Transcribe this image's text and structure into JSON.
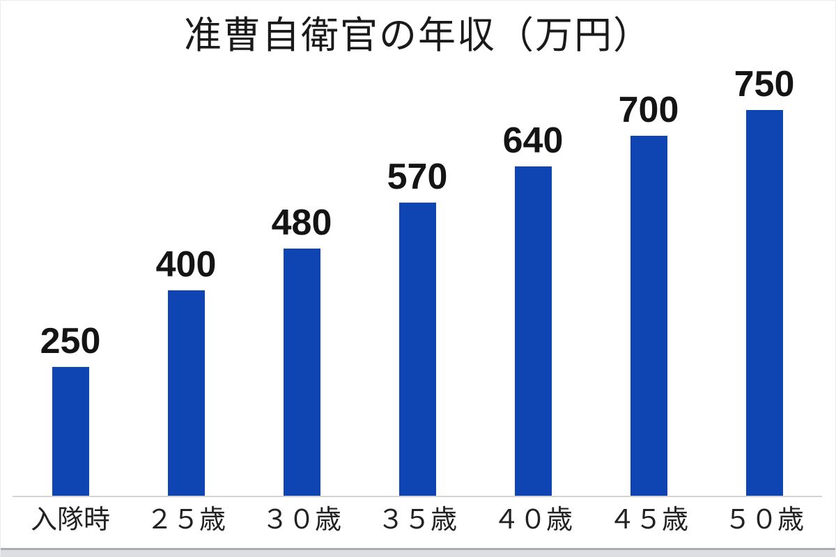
{
  "chart": {
    "colors": {
      "bar": "#0f45b2",
      "axis_line": "#d4d4d4",
      "value_label_text": "#141414",
      "category_label_text": "#222222",
      "title_text": "#1a1a1a",
      "background": "#ffffff"
    }
  },
  "chart_data": {
    "type": "bar",
    "title": "准曹自衛官の年収（万円）",
    "categories": [
      "入隊時",
      "２５歳",
      "３０歳",
      "３５歳",
      "４０歳",
      "４５歳",
      "５０歳"
    ],
    "values": [
      250,
      400,
      480,
      570,
      640,
      700,
      750
    ],
    "data_labels": [
      "250",
      "400",
      "480",
      "570",
      "640",
      "700",
      "750"
    ],
    "series_name": "年収（万円）",
    "xlabel": "",
    "ylabel": "",
    "ylim": [
      0,
      750
    ],
    "grid": false,
    "legend_position": "none",
    "value_labels_shown": true,
    "y_axis_ticks_shown": false
  }
}
